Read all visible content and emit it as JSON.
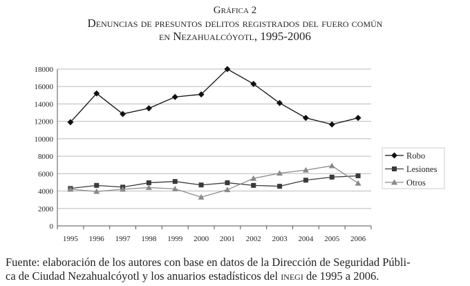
{
  "title": {
    "label": "Gráfica 2",
    "line1": "Denuncias de presuntos delitos registrados del fuero común",
    "line2": "en Nezahualcóyotl, 1995-2006"
  },
  "source": {
    "line1": "Fuente: elaboración de los autores con base en datos de la Dirección de Seguridad Públi-",
    "line2_a": "ca de Ciudad Nezahualcóyotl y los anuarios estadísticos del ",
    "line2_b": "inegi",
    "line2_c": " de 1995 a 2006."
  },
  "chart_data": {
    "type": "line",
    "title": "Denuncias de presuntos delitos registrados del fuero común en Nezahualcóyotl, 1995-2006",
    "xlabel": "",
    "ylabel": "",
    "categories": [
      "1995",
      "1996",
      "1997",
      "1998",
      "1999",
      "2000",
      "2001",
      "2002",
      "2003",
      "2004",
      "2005",
      "2006"
    ],
    "ylim": [
      0,
      18000
    ],
    "yticks": [
      "0",
      "2000",
      "4000",
      "6000",
      "8000",
      "10000",
      "12000",
      "14000",
      "16000",
      "18000"
    ],
    "grid": true,
    "legend": "right",
    "series": [
      {
        "name": "Robo",
        "marker": "diamond",
        "color": "#111111",
        "values": [
          11900,
          15200,
          12850,
          13500,
          14800,
          15100,
          18000,
          16300,
          14100,
          12400,
          11650,
          12400
        ]
      },
      {
        "name": "Lesiones",
        "marker": "square",
        "color": "#3a3a3a",
        "values": [
          4300,
          4650,
          4450,
          4950,
          5100,
          4700,
          4950,
          4650,
          4550,
          5250,
          5600,
          5750
        ]
      },
      {
        "name": "Otros",
        "marker": "triangle",
        "color": "#8a8a8a",
        "values": [
          4200,
          3950,
          4200,
          4400,
          4250,
          3300,
          4150,
          5450,
          6050,
          6400,
          6900,
          4900
        ]
      }
    ]
  }
}
